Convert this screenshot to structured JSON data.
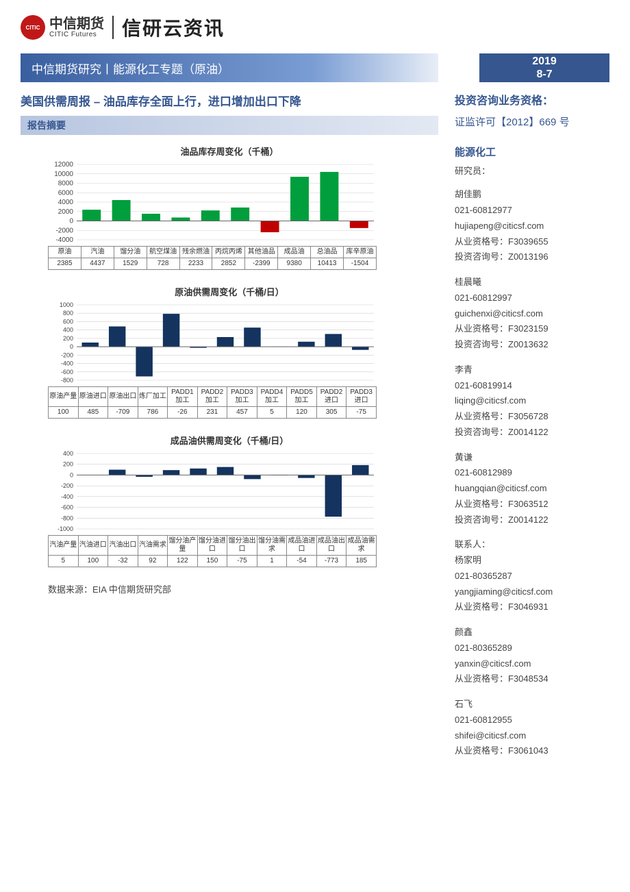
{
  "logo": {
    "cn": "中信期货",
    "en": "CITIC Futures",
    "mark": "CITIC"
  },
  "brand_right": "信研云资讯",
  "banner": {
    "left": "中信期货研究丨能源化工专题（原油）",
    "year": "2019",
    "date": "8-7"
  },
  "article_title": "美国供需周报 – 油品库存全面上行，进口增加出口下降",
  "section_bar": "报告摘要",
  "chart1": {
    "title": "油品库存周变化（千桶）",
    "type": "bar",
    "categories": [
      "原油",
      "汽油",
      "馏分油",
      "航空煤油",
      "残余燃油",
      "丙烷丙烯",
      "其他油品",
      "成品油",
      "总油品",
      "库辛原油"
    ],
    "values": [
      2385,
      4437,
      1529,
      728,
      2233,
      2852,
      -2399,
      9380,
      10413,
      -1504
    ],
    "pos_color": "#009e3d",
    "neg_color": "#c00000",
    "ylim": [
      -4000,
      12000
    ],
    "yticks": [
      -4000,
      -2000,
      0,
      2000,
      4000,
      6000,
      8000,
      10000,
      12000
    ],
    "grid_color": "#cfcfcf",
    "axis_color": "#666",
    "label_fontsize": 10
  },
  "chart2": {
    "title": "原油供需周变化（千桶/日）",
    "type": "bar",
    "categories": [
      "原油产量",
      "原油进口",
      "原油出口",
      "炼厂加工",
      "PADD1\n加工",
      "PADD2\n加工",
      "PADD3\n加工",
      "PADD4\n加工",
      "PADD5\n加工",
      "PADD2\n进口",
      "PADD3\n进口"
    ],
    "values": [
      100,
      485,
      -709,
      786,
      -26,
      231,
      457,
      5,
      120,
      305,
      -75
    ],
    "pos_color": "#14335e",
    "neg_color": "#14335e",
    "ylim": [
      -800,
      1000
    ],
    "yticks": [
      -800,
      -600,
      -400,
      -200,
      0,
      200,
      400,
      600,
      800,
      1000
    ],
    "grid_color": "#cfcfcf",
    "axis_color": "#666",
    "label_fontsize": 9
  },
  "chart3": {
    "title": "成品油供需周变化（千桶/日）",
    "type": "bar",
    "categories": [
      "汽油产量",
      "汽油进口",
      "汽油出口",
      "汽油需求",
      "馏分油产\n量",
      "馏分油进\n口",
      "馏分油出\n口",
      "馏分油需\n求",
      "成品油进\n口",
      "成品油出\n口",
      "成品油需\n求"
    ],
    "values": [
      5,
      100,
      -32,
      92,
      122,
      150,
      -75,
      1,
      -54,
      -773,
      185
    ],
    "pos_color": "#14335e",
    "neg_color": "#14335e",
    "ylim": [
      -1000,
      400
    ],
    "yticks": [
      -1000,
      -800,
      -600,
      -400,
      -200,
      0,
      200,
      400
    ],
    "grid_color": "#cfcfcf",
    "axis_color": "#666",
    "label_fontsize": 9
  },
  "source": "数据来源：EIA 中信期货研究部",
  "sidebar": {
    "qual_title": "投资咨询业务资格：",
    "qual_no": "证监许可【2012】669 号",
    "dept": "能源化工",
    "dept_sub": "研究员：",
    "analysts": [
      {
        "name": "胡佳鹏",
        "tel": "021-60812977",
        "email": "hujiapeng@citicsf.com",
        "lic": "从业资格号：F3039655",
        "adv": "投资咨询号：Z0013196"
      },
      {
        "name": "桂晨曦",
        "tel": "021-60812997",
        "email": "guichenxi@citicsf.com",
        "lic": "从业资格号：F3023159",
        "adv": "投资咨询号：Z0013632"
      },
      {
        "name": "李青",
        "tel": "021-60819914",
        "email": "liqing@citicsf.com",
        "lic": "从业资格号：F3056728",
        "adv": "投资咨询号：Z0014122"
      },
      {
        "name": "黄谦",
        "tel": "021-60812989",
        "email": "huangqian@citicsf.com",
        "lic": "从业资格号：F3063512",
        "adv": "投资咨询号：Z0014122"
      }
    ],
    "contact_label": "联系人：",
    "contacts": [
      {
        "name": "杨家明",
        "tel": "021-80365287",
        "email": "yangjiaming@citicsf.com",
        "lic": "从业资格号：F3046931"
      },
      {
        "name": "颜鑫",
        "tel": "021-80365289",
        "email": "yanxin@citicsf.com",
        "lic": "从业资格号：F3048534"
      },
      {
        "name": "石飞",
        "tel": "021-60812955",
        "email": "shifei@citicsf.com",
        "lic": "从业资格号：F3061043"
      }
    ]
  }
}
